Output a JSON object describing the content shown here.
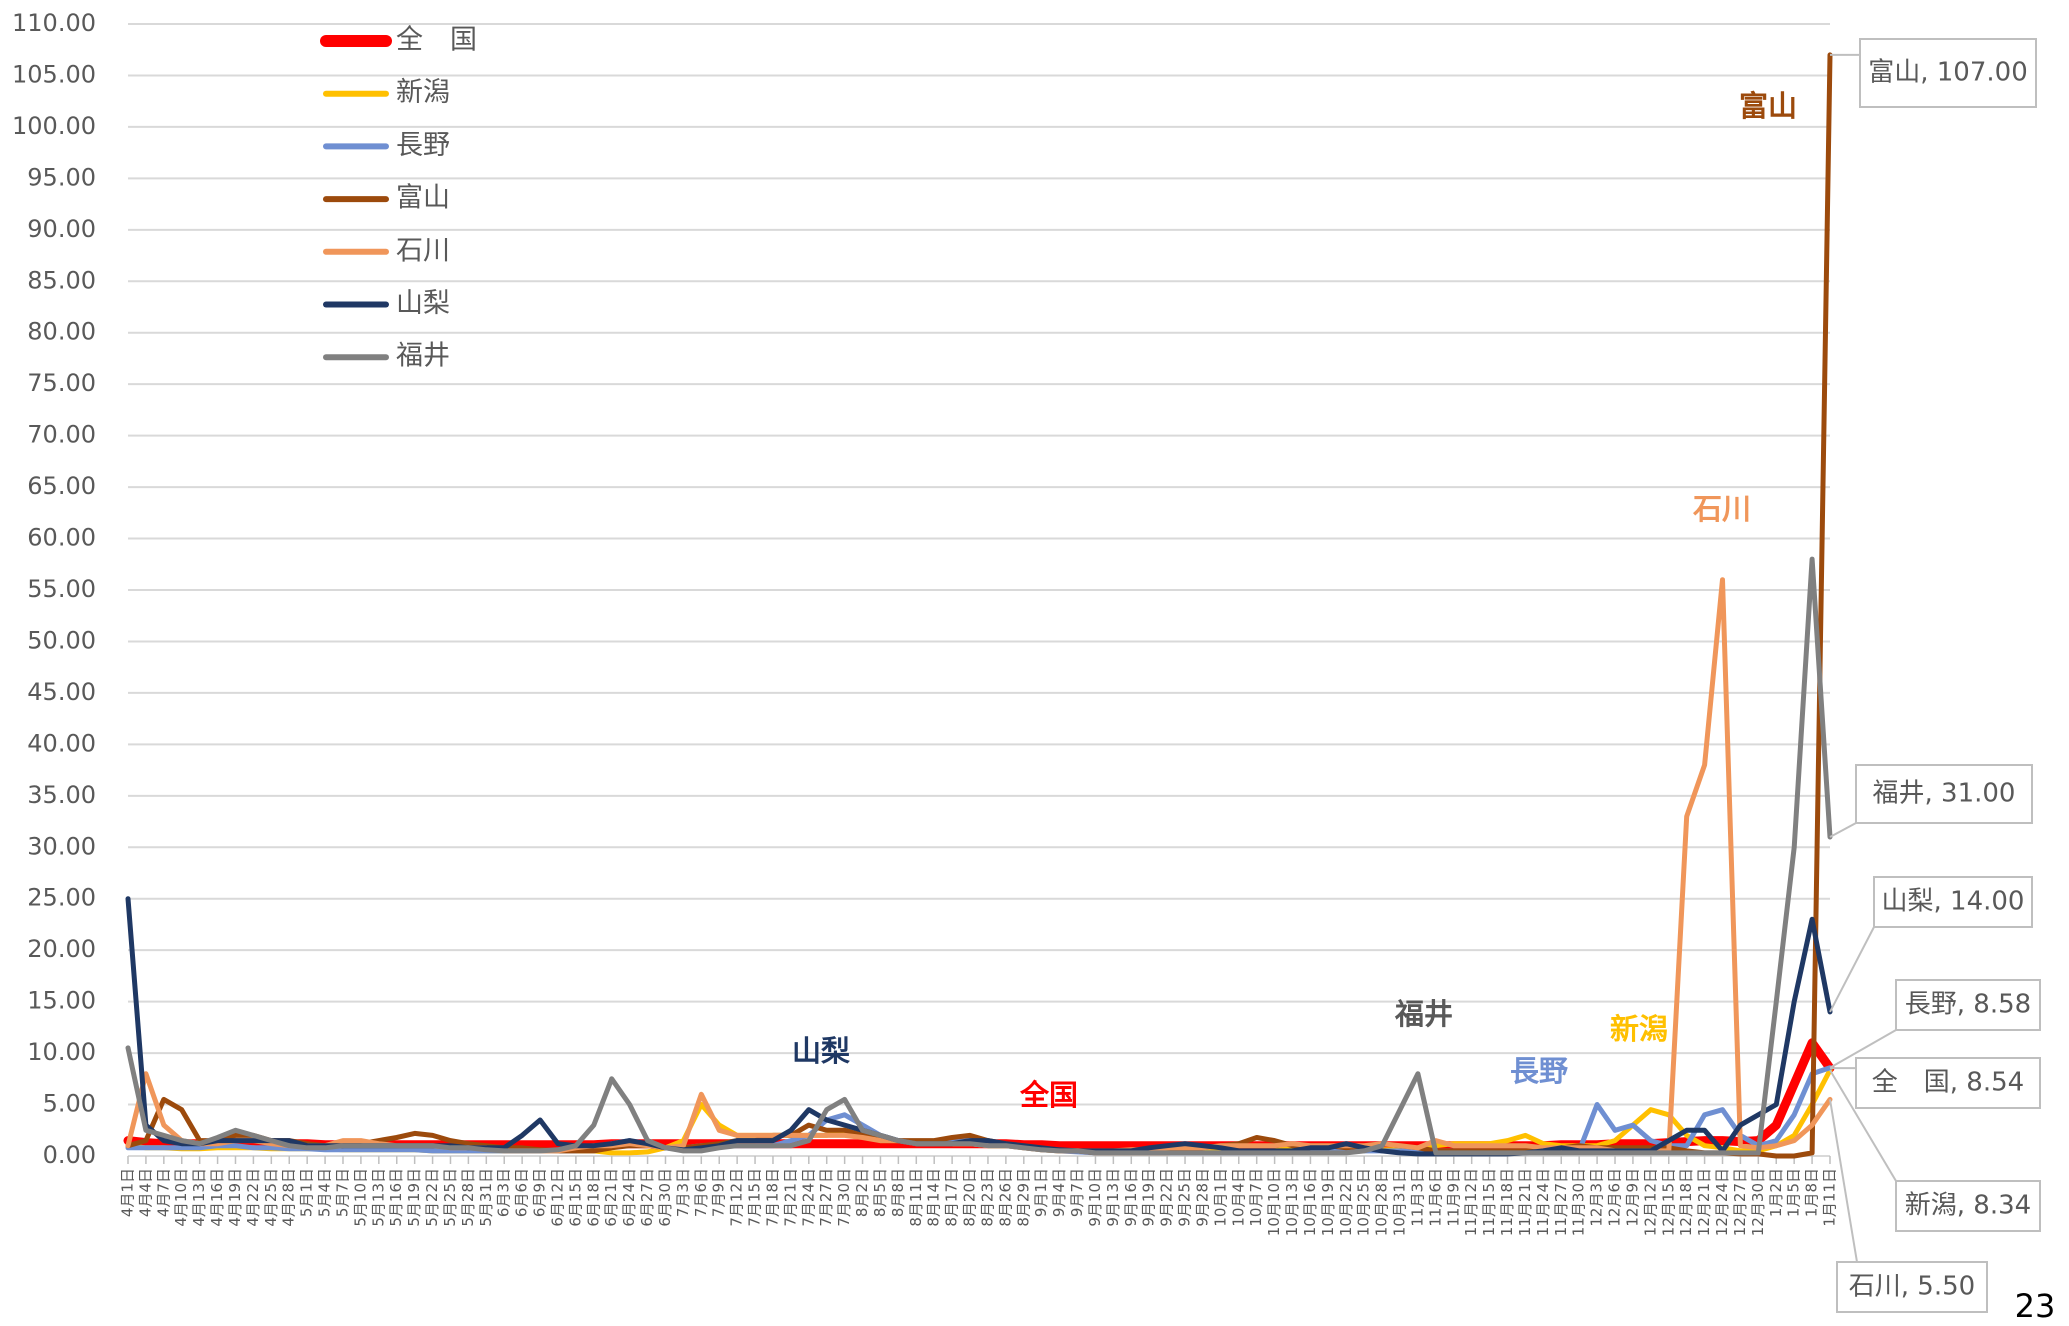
{
  "chart_data": {
    "type": "line",
    "categories": [
      "4月1日",
      "4月4日",
      "4月7日",
      "4月10日",
      "4月13日",
      "4月16日",
      "4月19日",
      "4月22日",
      "4月25日",
      "4月28日",
      "5月1日",
      "5月4日",
      "5月7日",
      "5月10日",
      "5月13日",
      "5月16日",
      "5月19日",
      "5月22日",
      "5月25日",
      "5月28日",
      "5月31日",
      "6月3日",
      "6月6日",
      "6月9日",
      "6月12日",
      "6月15日",
      "6月18日",
      "6月21日",
      "6月24日",
      "6月27日",
      "6月30日",
      "7月3日",
      "7月6日",
      "7月9日",
      "7月12日",
      "7月15日",
      "7月18日",
      "7月21日",
      "7月24日",
      "7月27日",
      "7月30日",
      "8月2日",
      "8月5日",
      "8月8日",
      "8月11日",
      "8月14日",
      "8月17日",
      "8月20日",
      "8月23日",
      "8月26日",
      "8月29日",
      "9月1日",
      "9月4日",
      "9月7日",
      "9月10日",
      "9月13日",
      "9月16日",
      "9月19日",
      "9月22日",
      "9月25日",
      "9月28日",
      "10月1日",
      "10月4日",
      "10月7日",
      "10月10日",
      "10月13日",
      "10月16日",
      "10月19日",
      "10月22日",
      "10月25日",
      "10月28日",
      "10月31日",
      "11月3日",
      "11月6日",
      "11月9日",
      "11月12日",
      "11月15日",
      "11月18日",
      "11月21日",
      "11月24日",
      "11月27日",
      "11月30日",
      "12月3日",
      "12月6日",
      "12月9日",
      "12月12日",
      "12月15日",
      "12月18日",
      "12月21日",
      "12月24日",
      "12月27日",
      "12月30日",
      "1月2日",
      "1月5日",
      "1月8日",
      "1月11日"
    ],
    "series": [
      {
        "name": "全　国",
        "color": "#ff0000",
        "width": 9,
        "end_label": "全　国, 8.54",
        "values": [
          1.5,
          1.3,
          1.2,
          1.2,
          1.2,
          1.3,
          1.3,
          1.2,
          1.2,
          1.2,
          1.2,
          1.1,
          1.1,
          1.1,
          1.1,
          1.1,
          1.1,
          1.1,
          1.1,
          1.1,
          1.1,
          1.1,
          1.1,
          1.1,
          1.1,
          1.1,
          1.1,
          1.2,
          1.2,
          1.2,
          1.2,
          1.2,
          1.2,
          1.2,
          1.2,
          1.2,
          1.2,
          1.2,
          1.2,
          1.2,
          1.2,
          1.2,
          1.2,
          1.2,
          1.2,
          1.2,
          1.2,
          1.2,
          1.2,
          1.2,
          1.1,
          1.1,
          1,
          1,
          1,
          1,
          1,
          1,
          1,
          1,
          1,
          1,
          1,
          1,
          1,
          1,
          1,
          1,
          1,
          1,
          1,
          1,
          1,
          1,
          1,
          1,
          1,
          1,
          1,
          1,
          1.1,
          1.1,
          1.1,
          1.2,
          1.2,
          1.2,
          1.3,
          1.4,
          1.5,
          1.5,
          1.4,
          1.5,
          3,
          7,
          11,
          8.54
        ]
      },
      {
        "name": "新潟",
        "color": "#ffc000",
        "width": 5,
        "end_label": "新潟, 8.34",
        "values": [
          1,
          0.8,
          0.8,
          0.7,
          0.7,
          0.8,
          0.8,
          0.8,
          0.7,
          0.7,
          0.7,
          0.7,
          0.6,
          0.6,
          0.6,
          0.6,
          0.6,
          0.5,
          0.5,
          0.5,
          0.5,
          0.5,
          0.5,
          0.5,
          0.5,
          0.5,
          0.5,
          0.3,
          0.3,
          0.4,
          0.8,
          1.5,
          5,
          3,
          2,
          2,
          2,
          2,
          2,
          2,
          2.5,
          2,
          1.5,
          1.5,
          1.2,
          1.2,
          1.2,
          1.2,
          1,
          1,
          0.8,
          0.6,
          0.5,
          0.5,
          0.4,
          0.4,
          0.4,
          0.4,
          0.5,
          0.5,
          0.5,
          0.5,
          0.5,
          0.5,
          0.5,
          0.8,
          0.6,
          0.6,
          0.6,
          0.6,
          0.6,
          0.6,
          0.8,
          1,
          1.2,
          1.2,
          1.2,
          1.5,
          2,
          1.2,
          1,
          1,
          1,
          1.5,
          3,
          4.5,
          4,
          2,
          1,
          0.8,
          0.5,
          0.5,
          1,
          2,
          5,
          8.34
        ]
      },
      {
        "name": "長野",
        "color": "#6f8fd2",
        "width": 5,
        "end_label": "長野, 8.58",
        "values": [
          0.8,
          0.8,
          0.8,
          0.8,
          0.8,
          1,
          1,
          0.8,
          0.8,
          0.7,
          0.7,
          0.6,
          0.6,
          0.6,
          0.6,
          0.6,
          0.6,
          0.5,
          0.5,
          0.5,
          0.5,
          0.5,
          0.5,
          0.5,
          0.5,
          0.5,
          0.8,
          1.2,
          1.5,
          1,
          0.8,
          0.8,
          1,
          1,
          1,
          1,
          1,
          1.5,
          2,
          3.5,
          4,
          3,
          2,
          1.5,
          1.2,
          1.2,
          1.5,
          1.5,
          1.2,
          1,
          0.8,
          0.6,
          0.5,
          0.4,
          0.3,
          0.3,
          0.3,
          0.3,
          0.3,
          0.3,
          0.3,
          0.3,
          0.3,
          0.3,
          0.3,
          0.5,
          0.5,
          0.5,
          0.5,
          0.5,
          0.5,
          0.5,
          0.5,
          0.5,
          0.5,
          0.5,
          0.5,
          0.5,
          0.5,
          0.5,
          0.5,
          0.5,
          5,
          2.5,
          3,
          1.5,
          1,
          1,
          4,
          4.5,
          2,
          1,
          1.5,
          4,
          8,
          8.58
        ]
      },
      {
        "name": "富山",
        "color": "#9c4a0c",
        "width": 5,
        "end_label": "富山, 107.00",
        "values": [
          1,
          1.5,
          5.5,
          4.5,
          1.5,
          1.5,
          2,
          2,
          1.5,
          1.5,
          1.2,
          1,
          1,
          1.2,
          1.5,
          1.8,
          2.2,
          2,
          1.5,
          1.2,
          1,
          0.8,
          0.8,
          0.6,
          0.5,
          0.5,
          0.5,
          0.8,
          1,
          1,
          0.8,
          0.8,
          1,
          1.2,
          1.5,
          1.5,
          2,
          2,
          3,
          2.5,
          2.5,
          2,
          1.5,
          1.5,
          1.5,
          1.5,
          1.8,
          2,
          1.5,
          1.2,
          1,
          0.8,
          0.5,
          0.5,
          0.3,
          0.3,
          0.3,
          0.3,
          0.3,
          0.5,
          0.8,
          1,
          1.2,
          1.8,
          1.5,
          1,
          1,
          1,
          0.8,
          1,
          1.2,
          1,
          0.8,
          0.5,
          0.5,
          0.5,
          0.5,
          0.5,
          0.5,
          0.5,
          0.8,
          1,
          0.8,
          0.8,
          0.8,
          0.8,
          0.8,
          0.5,
          0.3,
          0.3,
          0.2,
          0.2,
          0,
          0,
          0.3,
          107
        ]
      },
      {
        "name": "石川",
        "color": "#f0965a",
        "width": 5,
        "end_label": "石川, 5.50",
        "values": [
          1,
          8,
          3,
          1.5,
          1.2,
          1.2,
          1.5,
          1.5,
          1.2,
          1,
          1,
          1,
          1.5,
          1.5,
          1.2,
          1,
          1,
          1,
          0.8,
          0.8,
          0.8,
          0.5,
          0.5,
          0.5,
          0.5,
          0.8,
          1,
          1,
          1.2,
          1,
          0.8,
          1,
          6,
          2.5,
          2,
          2,
          2,
          2,
          2,
          2,
          2,
          1.8,
          1.5,
          1.5,
          1.2,
          1.2,
          1.2,
          1.2,
          1,
          1,
          0.8,
          0.6,
          0.5,
          0.5,
          0.5,
          0.5,
          0.6,
          0.6,
          0.8,
          0.8,
          0.8,
          1,
          1,
          1,
          1,
          1.2,
          1,
          1,
          1,
          1,
          1.2,
          1,
          0.8,
          1.5,
          1,
          1,
          1,
          1,
          1,
          0.8,
          0.8,
          0.8,
          0.8,
          0.5,
          0.5,
          0.5,
          0.5,
          33,
          38,
          56,
          1,
          0.8,
          1,
          1.5,
          3,
          5.5
        ]
      },
      {
        "name": "山梨",
        "color": "#1f3864",
        "width": 5,
        "end_label": "山梨, 14.00",
        "values": [
          25,
          3,
          1.5,
          1.2,
          1.2,
          1.5,
          1.5,
          1.5,
          1.5,
          1.5,
          1,
          1,
          1,
          1,
          1,
          1,
          1,
          1,
          1,
          0.8,
          0.8,
          0.8,
          2,
          3.5,
          1.2,
          1,
          1,
          1.2,
          1.5,
          1.2,
          0.8,
          0.6,
          0.8,
          1,
          1.5,
          1.5,
          1.5,
          2.5,
          4.5,
          3.5,
          3,
          2.5,
          2,
          1.5,
          1.2,
          1.2,
          1.2,
          1.5,
          1.5,
          1.2,
          1,
          0.8,
          0.6,
          0.5,
          0.5,
          0.5,
          0.5,
          0.8,
          1,
          1.2,
          1,
          0.8,
          0.5,
          0.5,
          0.5,
          0.5,
          0.8,
          0.8,
          1.2,
          0.8,
          0.5,
          0.3,
          0.2,
          0.2,
          0.2,
          0.2,
          0.2,
          0.2,
          0.3,
          0.5,
          0.8,
          0.5,
          0.5,
          0.5,
          0.5,
          0.5,
          1.5,
          2.5,
          2.5,
          0.5,
          3,
          4,
          5,
          15,
          23,
          14
        ]
      },
      {
        "name": "福井",
        "color": "#808080",
        "width": 5,
        "end_label": "福井, 31.00",
        "values": [
          10.5,
          2.5,
          2,
          1.5,
          1.2,
          1.8,
          2.5,
          2,
          1.5,
          1,
          0.8,
          0.8,
          1,
          1,
          1,
          1,
          1,
          1,
          0.8,
          0.8,
          0.6,
          0.5,
          0.5,
          0.5,
          0.6,
          1,
          3,
          7.5,
          5,
          1.5,
          0.8,
          0.5,
          0.5,
          0.8,
          1,
          1,
          1,
          1,
          1.5,
          4.5,
          5.5,
          2.5,
          2,
          1.5,
          1.2,
          1.2,
          1.2,
          1.2,
          1,
          1,
          0.8,
          0.6,
          0.5,
          0.5,
          0.3,
          0.3,
          0.3,
          0.3,
          0.3,
          0.3,
          0.3,
          0.3,
          0.3,
          0.3,
          0.3,
          0.3,
          0.3,
          0.3,
          0.3,
          0.5,
          1,
          4.5,
          8,
          0.3,
          0.3,
          0.3,
          0.3,
          0.3,
          0.3,
          0.3,
          0.3,
          0.3,
          0.3,
          0.3,
          0.3,
          0.3,
          0.3,
          0.3,
          0.3,
          0.3,
          0.3,
          0.3,
          15,
          30,
          58,
          31
        ]
      }
    ],
    "annotations": [
      {
        "text": "富山",
        "color": "#9c4a0c"
      },
      {
        "text": "石川",
        "color": "#f0965a"
      },
      {
        "text": "福井",
        "color": "#595959"
      },
      {
        "text": "長野",
        "color": "#6f8fd2"
      },
      {
        "text": "新潟",
        "color": "#ffc000"
      },
      {
        "text": "山梨",
        "color": "#1f3864"
      },
      {
        "text": "全国",
        "color": "#ff0000"
      }
    ],
    "ylim": [
      0,
      110
    ],
    "yticks": [
      {
        "value": 0,
        "label": "0.00"
      },
      {
        "value": 5,
        "label": "5.00"
      },
      {
        "value": 10,
        "label": "10.00"
      },
      {
        "value": 15,
        "label": "15.00"
      },
      {
        "value": 20,
        "label": "20.00"
      },
      {
        "value": 25,
        "label": "25.00"
      },
      {
        "value": 30,
        "label": "30.00"
      },
      {
        "value": 35,
        "label": "35.00"
      },
      {
        "value": 40,
        "label": "40.00"
      },
      {
        "value": 45,
        "label": "45.00"
      },
      {
        "value": 50,
        "label": "50.00"
      },
      {
        "value": 55,
        "label": "55.00"
      },
      {
        "value": 60,
        "label": "60.00"
      },
      {
        "value": 65,
        "label": "65.00"
      },
      {
        "value": 70,
        "label": "70.00"
      },
      {
        "value": 75,
        "label": "75.00"
      },
      {
        "value": 80,
        "label": "80.00"
      },
      {
        "value": 85,
        "label": "85.00"
      },
      {
        "value": 90,
        "label": "90.00"
      },
      {
        "value": 95,
        "label": "95.00"
      },
      {
        "value": 100,
        "label": "100.00"
      },
      {
        "value": 105,
        "label": "105.00"
      },
      {
        "value": 110,
        "label": "110.00"
      }
    ],
    "grid": true,
    "legend": "top-left",
    "page_number": "23"
  }
}
